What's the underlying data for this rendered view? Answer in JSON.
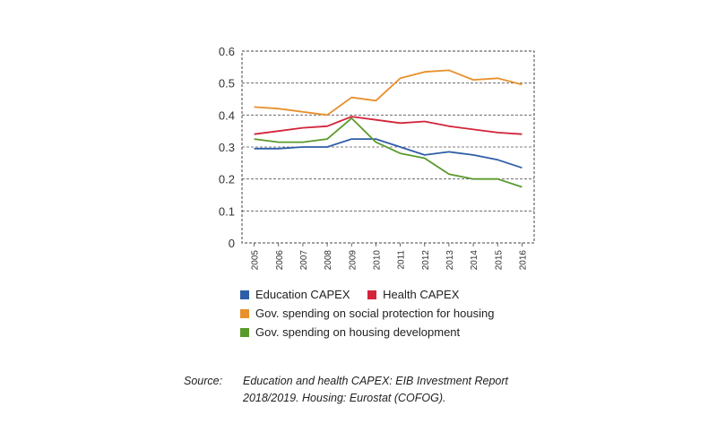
{
  "chart_data": {
    "type": "line",
    "x": [
      "2005",
      "2006",
      "2007",
      "2008",
      "2009",
      "2010",
      "2011",
      "2012",
      "2013",
      "2014",
      "2015",
      "2016"
    ],
    "ylim": [
      0,
      0.6
    ],
    "yticks": [
      "0",
      "0.1",
      "0.2",
      "0.3",
      "0.4",
      "0.5",
      "0.6"
    ],
    "series": [
      {
        "name": "Education CAPEX",
        "color": "#2f5ea8",
        "values": [
          0.295,
          0.295,
          0.3,
          0.3,
          0.325,
          0.325,
          0.3,
          0.275,
          0.285,
          0.275,
          0.26,
          0.235
        ]
      },
      {
        "name": "Health CAPEX",
        "color": "#d4243a",
        "values": [
          0.34,
          0.35,
          0.36,
          0.365,
          0.395,
          0.385,
          0.375,
          0.38,
          0.365,
          0.355,
          0.345,
          0.34
        ]
      },
      {
        "name": "Gov. spending on social protection for housing",
        "color": "#e8902c",
        "values": [
          0.425,
          0.42,
          0.41,
          0.4,
          0.455,
          0.445,
          0.515,
          0.535,
          0.54,
          0.51,
          0.515,
          0.495
        ]
      },
      {
        "name": "Gov. spending on housing development",
        "color": "#5a9a2c",
        "values": [
          0.325,
          0.315,
          0.315,
          0.325,
          0.39,
          0.315,
          0.28,
          0.265,
          0.215,
          0.2,
          0.2,
          0.175
        ]
      }
    ],
    "grid": true
  },
  "legend": {
    "rows": [
      [
        {
          "label": "Education CAPEX",
          "color": "#2f5ea8"
        },
        {
          "label": "Health CAPEX",
          "color": "#d4243a"
        }
      ],
      [
        {
          "label": "Gov. spending on social protection for housing",
          "color": "#e8902c"
        }
      ],
      [
        {
          "label": "Gov. spending on housing development",
          "color": "#5a9a2c"
        }
      ]
    ]
  },
  "source": {
    "label": "Source:",
    "line1": "Education and health CAPEX: EIB Investment Report",
    "line2": "2018/2019. Housing: Eurostat (COFOG)."
  }
}
